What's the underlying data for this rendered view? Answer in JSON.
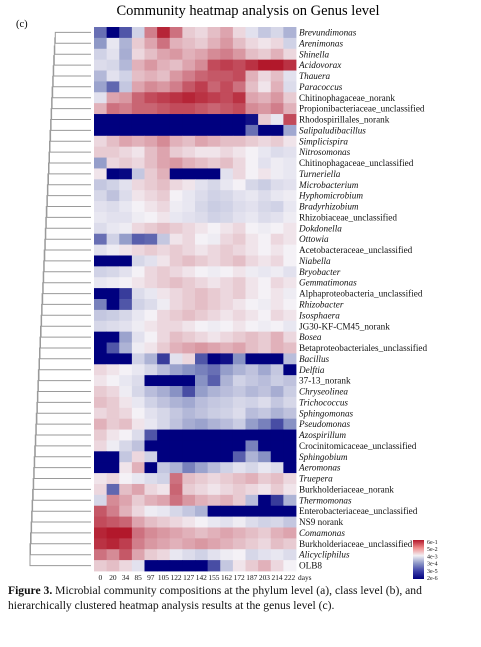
{
  "panel_label": "(c)",
  "caption": {
    "label": "Figure 3.",
    "text": "Microbial community compositions at the phylum level (a), class level (b), and hierarchically clustered heatmap analysis results at the genus level (c)."
  },
  "chart_data": {
    "type": "heatmap",
    "title": "Community heatmap analysis on Genus level",
    "x": [
      "0",
      "20",
      "34",
      "85",
      "97",
      "105",
      "122",
      "127",
      "142",
      "155",
      "162",
      "172",
      "187",
      "203",
      "214",
      "222"
    ],
    "x_unit": "days",
    "rows": [
      {
        "name": "Brevundimonas",
        "values": [
          -2.2,
          -3.5,
          -2.5,
          -0.6,
          0.9,
          1.6,
          1.0,
          0.3,
          0.2,
          0.4,
          0.6,
          0.2,
          -0.3,
          -0.8,
          -0.5,
          -1.2
        ]
      },
      {
        "name": "Arenimonas",
        "values": [
          -1.7,
          -0.2,
          -1.2,
          0.3,
          0.6,
          1.0,
          0.5,
          0.4,
          0.3,
          0.5,
          0.7,
          0.4,
          0.2,
          0.1,
          0.2,
          -0.6
        ]
      },
      {
        "name": "Shinella",
        "values": [
          -0.6,
          -0.3,
          -1.3,
          0.2,
          0.4,
          0.6,
          0.7,
          0.5,
          0.6,
          0.8,
          0.9,
          0.7,
          0.4,
          0.3,
          0.5,
          0.2
        ]
      },
      {
        "name": "Acidovorax",
        "values": [
          -0.4,
          -0.5,
          -1.1,
          0.5,
          0.7,
          0.5,
          0.4,
          0.6,
          0.8,
          1.3,
          1.4,
          1.3,
          1.5,
          1.7,
          1.8,
          1.5
        ]
      },
      {
        "name": "Thauera",
        "values": [
          -1.1,
          -0.3,
          -0.6,
          0.4,
          0.5,
          0.4,
          0.7,
          0.9,
          1.1,
          1.2,
          1.2,
          1.3,
          0.5,
          0.2,
          0.4,
          -0.3
        ]
      },
      {
        "name": "Paracoccus",
        "values": [
          -1.5,
          -2.3,
          -0.8,
          0.6,
          0.8,
          0.7,
          0.9,
          1.2,
          1.4,
          1.1,
          1.3,
          1.0,
          0.4,
          0.1,
          0.5,
          -0.4
        ]
      },
      {
        "name": "Chitinophagaceae_norank",
        "values": [
          -0.3,
          0.6,
          0.7,
          1.1,
          1.3,
          1.4,
          1.5,
          1.6,
          1.5,
          1.4,
          1.3,
          1.5,
          0.6,
          0.5,
          0.7,
          0.3
        ]
      },
      {
        "name": "Propionibacteriaceae_unclassified",
        "values": [
          0.5,
          1.0,
          0.9,
          1.1,
          1.1,
          1.2,
          1.3,
          1.3,
          1.2,
          1.1,
          1.2,
          1.3,
          0.8,
          0.7,
          0.9,
          0.5
        ]
      },
      {
        "name": "Rhodospirillales_norank",
        "values": [
          -3.5,
          -3.5,
          -3.5,
          -3.5,
          -3.5,
          -3.5,
          -3.5,
          -3.5,
          -3.5,
          -3.5,
          -3.5,
          -3.5,
          -3.3,
          0.3,
          -0.2,
          1.3
        ]
      },
      {
        "name": "Salipaludibacillus",
        "values": [
          -3.5,
          -3.5,
          -3.5,
          -3.5,
          -3.5,
          -3.5,
          -3.5,
          -3.5,
          -3.5,
          -3.5,
          -3.5,
          -3.5,
          -2.2,
          -3.5,
          -3.5,
          -1.4
        ]
      },
      {
        "name": "Simplicispira",
        "values": [
          0.2,
          0.4,
          0.6,
          0.5,
          0.6,
          0.8,
          0.5,
          0.4,
          0.6,
          0.5,
          0.4,
          0.4,
          0.3,
          0.2,
          0.3,
          0.1
        ]
      },
      {
        "name": "Nitrosomonas",
        "values": [
          0.3,
          0.3,
          0.2,
          0.1,
          0.4,
          0.6,
          0.3,
          0.2,
          0.1,
          0.1,
          0.2,
          0.1,
          0.0,
          -0.2,
          -0.4,
          -0.3
        ]
      },
      {
        "name": "Chitinophagaceae_unclassified",
        "values": [
          -1.6,
          0.2,
          0.3,
          0.2,
          0.4,
          0.6,
          0.7,
          0.5,
          0.4,
          0.3,
          0.4,
          0.2,
          0.0,
          -0.3,
          -0.1,
          -0.2
        ]
      },
      {
        "name": "Turneriella",
        "values": [
          0.1,
          -3.5,
          -3.4,
          -0.8,
          0.3,
          0.5,
          -3.5,
          -3.5,
          -3.5,
          -3.5,
          -0.3,
          0.2,
          0.0,
          0.1,
          -0.1,
          -0.2
        ]
      },
      {
        "name": "Microbacterium",
        "values": [
          -0.8,
          -0.6,
          -0.3,
          0.2,
          0.3,
          0.4,
          0.2,
          0.1,
          -0.3,
          -0.5,
          -0.2,
          0.0,
          -0.5,
          -0.7,
          -0.4,
          -0.3
        ]
      },
      {
        "name": "Hyphomicrobium",
        "values": [
          -0.5,
          -0.9,
          -0.4,
          0.1,
          0.2,
          0.3,
          0.0,
          -0.2,
          -0.4,
          -0.6,
          -0.5,
          -0.3,
          -0.2,
          -0.4,
          -0.2,
          -0.1
        ]
      },
      {
        "name": "Bradyrhizobium",
        "values": [
          -0.3,
          -0.4,
          -0.2,
          0.0,
          0.1,
          0.2,
          -0.1,
          -0.2,
          -0.5,
          -0.7,
          -0.6,
          -0.4,
          -0.3,
          -0.5,
          -0.6,
          -0.2
        ]
      },
      {
        "name": "Rhizobiaceae_unclassified",
        "values": [
          -0.2,
          -0.3,
          -0.3,
          -0.1,
          0.0,
          0.1,
          -0.2,
          -0.3,
          -0.4,
          -0.6,
          -0.5,
          -0.3,
          -0.2,
          -0.4,
          -0.3,
          -0.1
        ]
      },
      {
        "name": "Dokdonella",
        "values": [
          -0.4,
          -0.2,
          -0.1,
          0.2,
          0.3,
          0.4,
          0.3,
          0.2,
          0.1,
          0.0,
          0.1,
          0.2,
          0.0,
          -0.1,
          0.0,
          0.1
        ]
      },
      {
        "name": "Ottowia",
        "values": [
          -2.2,
          -0.6,
          -1.6,
          -2.4,
          -2.3,
          -0.8,
          0.1,
          0.2,
          0.0,
          -0.1,
          0.2,
          0.3,
          0.1,
          0.0,
          0.2,
          0.1
        ]
      },
      {
        "name": "Acetobacteraceae_unclassified",
        "values": [
          -0.3,
          -0.1,
          0.1,
          0.2,
          0.3,
          0.2,
          0.3,
          0.2,
          0.1,
          0.2,
          0.3,
          0.2,
          0.1,
          0.0,
          0.1,
          0.0
        ]
      },
      {
        "name": "Niabella",
        "values": [
          -3.5,
          -3.5,
          -3.5,
          -0.5,
          -0.3,
          0.1,
          0.3,
          0.4,
          0.3,
          0.2,
          0.3,
          0.4,
          0.2,
          0.1,
          0.2,
          0.0
        ]
      },
      {
        "name": "Bryobacter",
        "values": [
          -0.6,
          -0.5,
          -0.3,
          0.0,
          0.2,
          0.3,
          0.2,
          0.1,
          0.0,
          -0.1,
          0.0,
          0.1,
          -0.1,
          -0.2,
          -0.1,
          -0.3
        ]
      },
      {
        "name": "Gemmatimonas",
        "values": [
          -0.2,
          -0.1,
          0.0,
          0.1,
          0.2,
          0.3,
          0.4,
          0.3,
          0.2,
          0.1,
          0.2,
          0.3,
          0.1,
          0.0,
          0.2,
          0.1
        ]
      },
      {
        "name": "Alphaproteobacteria_unclassified",
        "values": [
          -3.5,
          -3.5,
          -2.8,
          -0.4,
          -0.2,
          0.1,
          0.2,
          0.3,
          0.4,
          0.3,
          0.2,
          0.3,
          0.1,
          0.0,
          0.1,
          -0.1
        ]
      },
      {
        "name": "Rhizobacter",
        "values": [
          -2.0,
          -3.5,
          -2.5,
          -0.6,
          -0.4,
          -0.1,
          0.2,
          0.3,
          0.4,
          0.3,
          0.2,
          0.1,
          0.0,
          -0.1,
          0.1,
          0.0
        ]
      },
      {
        "name": "Isosphaera",
        "values": [
          -0.8,
          -0.7,
          -0.5,
          -0.2,
          0.0,
          0.2,
          0.3,
          0.4,
          0.3,
          0.2,
          0.1,
          0.2,
          0.1,
          0.0,
          0.2,
          0.1
        ]
      },
      {
        "name": "JG30-KF-CM45_norank",
        "values": [
          -0.5,
          -0.4,
          -0.3,
          -0.1,
          0.1,
          0.2,
          0.2,
          0.1,
          0.0,
          -0.1,
          0.0,
          0.1,
          0.0,
          -0.1,
          0.0,
          -0.2
        ]
      },
      {
        "name": "Bosea",
        "values": [
          -3.5,
          -3.5,
          -1.5,
          -0.3,
          0.0,
          0.2,
          0.4,
          0.3,
          0.2,
          0.1,
          0.2,
          0.3,
          0.4,
          0.3,
          0.5,
          0.2
        ]
      },
      {
        "name": "Betaproteobacteriales_unclassified",
        "values": [
          -3.5,
          -2.5,
          -1.2,
          -0.1,
          0.1,
          0.3,
          0.5,
          0.6,
          0.7,
          0.6,
          0.5,
          0.6,
          0.4,
          0.3,
          0.5,
          0.4
        ]
      },
      {
        "name": "Bacillus",
        "values": [
          -3.5,
          -3.5,
          -3.5,
          -0.6,
          -1.2,
          -2.8,
          -0.3,
          0.2,
          -2.5,
          -3.5,
          -3.3,
          -1.8,
          -3.5,
          -3.5,
          -3.5,
          -1.0
        ]
      },
      {
        "name": "Delftia",
        "values": [
          0.2,
          0.1,
          0.0,
          -0.2,
          -0.5,
          -1.0,
          -1.5,
          -1.8,
          -2.0,
          -2.2,
          -1.6,
          -1.2,
          -0.9,
          -1.4,
          -0.8,
          -3.5
        ]
      },
      {
        "name": "37-13_norank",
        "values": [
          0.1,
          0.0,
          -0.2,
          -0.4,
          -3.5,
          -3.5,
          -3.5,
          -3.5,
          -1.8,
          -2.4,
          -1.2,
          -0.6,
          -0.8,
          -1.0,
          -0.7,
          -0.9
        ]
      },
      {
        "name": "Chryseolinea",
        "values": [
          0.3,
          0.2,
          -0.1,
          -0.5,
          -1.0,
          -1.3,
          -1.8,
          -2.6,
          -1.6,
          -1.2,
          -1.0,
          -0.8,
          -1.1,
          -0.9,
          -1.3,
          -0.7
        ]
      },
      {
        "name": "Trichococcus",
        "values": [
          0.4,
          0.3,
          0.1,
          -0.2,
          -0.6,
          -0.9,
          -1.2,
          -1.4,
          -1.0,
          -0.8,
          -0.7,
          -0.5,
          -0.6,
          -0.4,
          -0.8,
          -0.5
        ]
      },
      {
        "name": "Sphingomonas",
        "values": [
          0.2,
          0.3,
          0.2,
          0.0,
          -0.3,
          -0.5,
          -0.8,
          -1.1,
          -0.9,
          -0.7,
          -0.6,
          -0.4,
          -1.0,
          -0.8,
          -1.2,
          -0.9
        ]
      },
      {
        "name": "Pseudomonas",
        "values": [
          0.5,
          0.3,
          0.4,
          0.1,
          -0.2,
          -0.5,
          -0.9,
          -1.3,
          -1.5,
          -1.2,
          -1.0,
          -0.7,
          -1.6,
          -2.0,
          -2.6,
          -1.8
        ]
      },
      {
        "name": "Azospirillum",
        "values": [
          0.3,
          0.1,
          0.0,
          -0.4,
          -2.5,
          -3.5,
          -3.5,
          -3.5,
          -3.5,
          -3.5,
          -3.5,
          -3.5,
          -3.5,
          -3.5,
          -3.5,
          -3.5
        ]
      },
      {
        "name": "Crocinitomicaceae_unclassified",
        "values": [
          0.2,
          -0.1,
          -0.5,
          -0.9,
          -3.5,
          -3.5,
          -3.5,
          -3.5,
          -3.5,
          -3.5,
          -3.5,
          -3.5,
          -2.0,
          -3.5,
          -3.5,
          -3.5
        ]
      },
      {
        "name": "Sphingobium",
        "values": [
          -3.5,
          -3.5,
          -0.8,
          0.2,
          -0.6,
          -3.5,
          -3.5,
          -3.5,
          -3.5,
          -3.5,
          -3.5,
          -2.4,
          -1.2,
          -1.8,
          -3.5,
          -3.5
        ]
      },
      {
        "name": "Aeromonas",
        "values": [
          -3.5,
          -3.5,
          0.1,
          0.5,
          -3.5,
          -0.8,
          -1.2,
          -2.0,
          -1.5,
          -1.0,
          -0.6,
          -0.3,
          -0.5,
          -0.2,
          -0.4,
          -3.5
        ]
      },
      {
        "name": "Truepera",
        "values": [
          0.1,
          0.2,
          0.0,
          -0.2,
          -0.4,
          -0.6,
          1.0,
          0.4,
          0.3,
          0.2,
          0.3,
          0.4,
          0.5,
          0.3,
          0.4,
          0.2
        ]
      },
      {
        "name": "Burkholderiaceae_norank",
        "values": [
          0.2,
          -2.3,
          0.4,
          0.6,
          0.2,
          0.1,
          1.1,
          0.3,
          0.2,
          0.1,
          0.2,
          0.3,
          0.2,
          0.1,
          0.3,
          0.1
        ]
      },
      {
        "name": "Thermomonas",
        "values": [
          -0.5,
          0.8,
          0.6,
          0.3,
          0.5,
          0.6,
          1.0,
          0.7,
          0.5,
          0.4,
          0.5,
          0.3,
          -1.0,
          -3.5,
          -2.8,
          -1.2
        ]
      },
      {
        "name": "Enterobacteriaceae_unclassified",
        "values": [
          1.2,
          0.9,
          0.5,
          0.2,
          -0.1,
          -0.2,
          -0.5,
          -0.8,
          -1.2,
          -3.5,
          -3.5,
          -3.5,
          -3.5,
          -3.5,
          -3.5,
          -3.5
        ]
      },
      {
        "name": "NS9 norank",
        "values": [
          1.3,
          1.2,
          1.1,
          0.6,
          0.4,
          0.3,
          0.2,
          0.1,
          0.0,
          -0.2,
          -0.3,
          -0.1,
          -0.4,
          -0.6,
          -0.5,
          -0.8
        ]
      },
      {
        "name": "Comamonas",
        "values": [
          1.6,
          1.8,
          1.7,
          1.0,
          0.8,
          0.7,
          0.6,
          0.5,
          0.4,
          0.5,
          0.6,
          0.5,
          0.4,
          0.3,
          0.5,
          0.6
        ]
      },
      {
        "name": "Burkholderiaceae_unclassified",
        "values": [
          1.5,
          1.6,
          1.4,
          0.9,
          0.7,
          0.6,
          0.5,
          0.6,
          0.7,
          0.6,
          0.5,
          0.4,
          0.3,
          0.2,
          0.4,
          0.3
        ]
      },
      {
        "name": "Alicycliphilus",
        "values": [
          1.0,
          0.8,
          1.2,
          0.6,
          0.3,
          0.2,
          -0.2,
          -0.4,
          -0.6,
          -0.3,
          -0.1,
          0.0,
          -0.5,
          -0.3,
          -0.2,
          -0.4
        ]
      },
      {
        "name": "OLB8",
        "values": [
          0.3,
          0.4,
          0.2,
          -0.3,
          -3.5,
          -3.5,
          -3.5,
          -3.5,
          -3.5,
          -2.6,
          -0.8,
          0.1,
          0.3,
          0.5,
          0.2,
          0.0
        ]
      }
    ],
    "legend": {
      "labels": [
        "6e-1",
        "5e-2",
        "4e-3",
        "3e-4",
        "3e-5",
        "2e-6"
      ],
      "colors": [
        "#b2182b",
        "#ef8a8a",
        "#f2f0f4",
        "#8c96c6",
        "#3b3fa8",
        "#00007f"
      ],
      "scale": "log"
    },
    "colors": {
      "high": "#b2182b",
      "mid": "#f4f1f6",
      "low": "#00007f",
      "dendrogram": "#9a9a9a"
    }
  }
}
